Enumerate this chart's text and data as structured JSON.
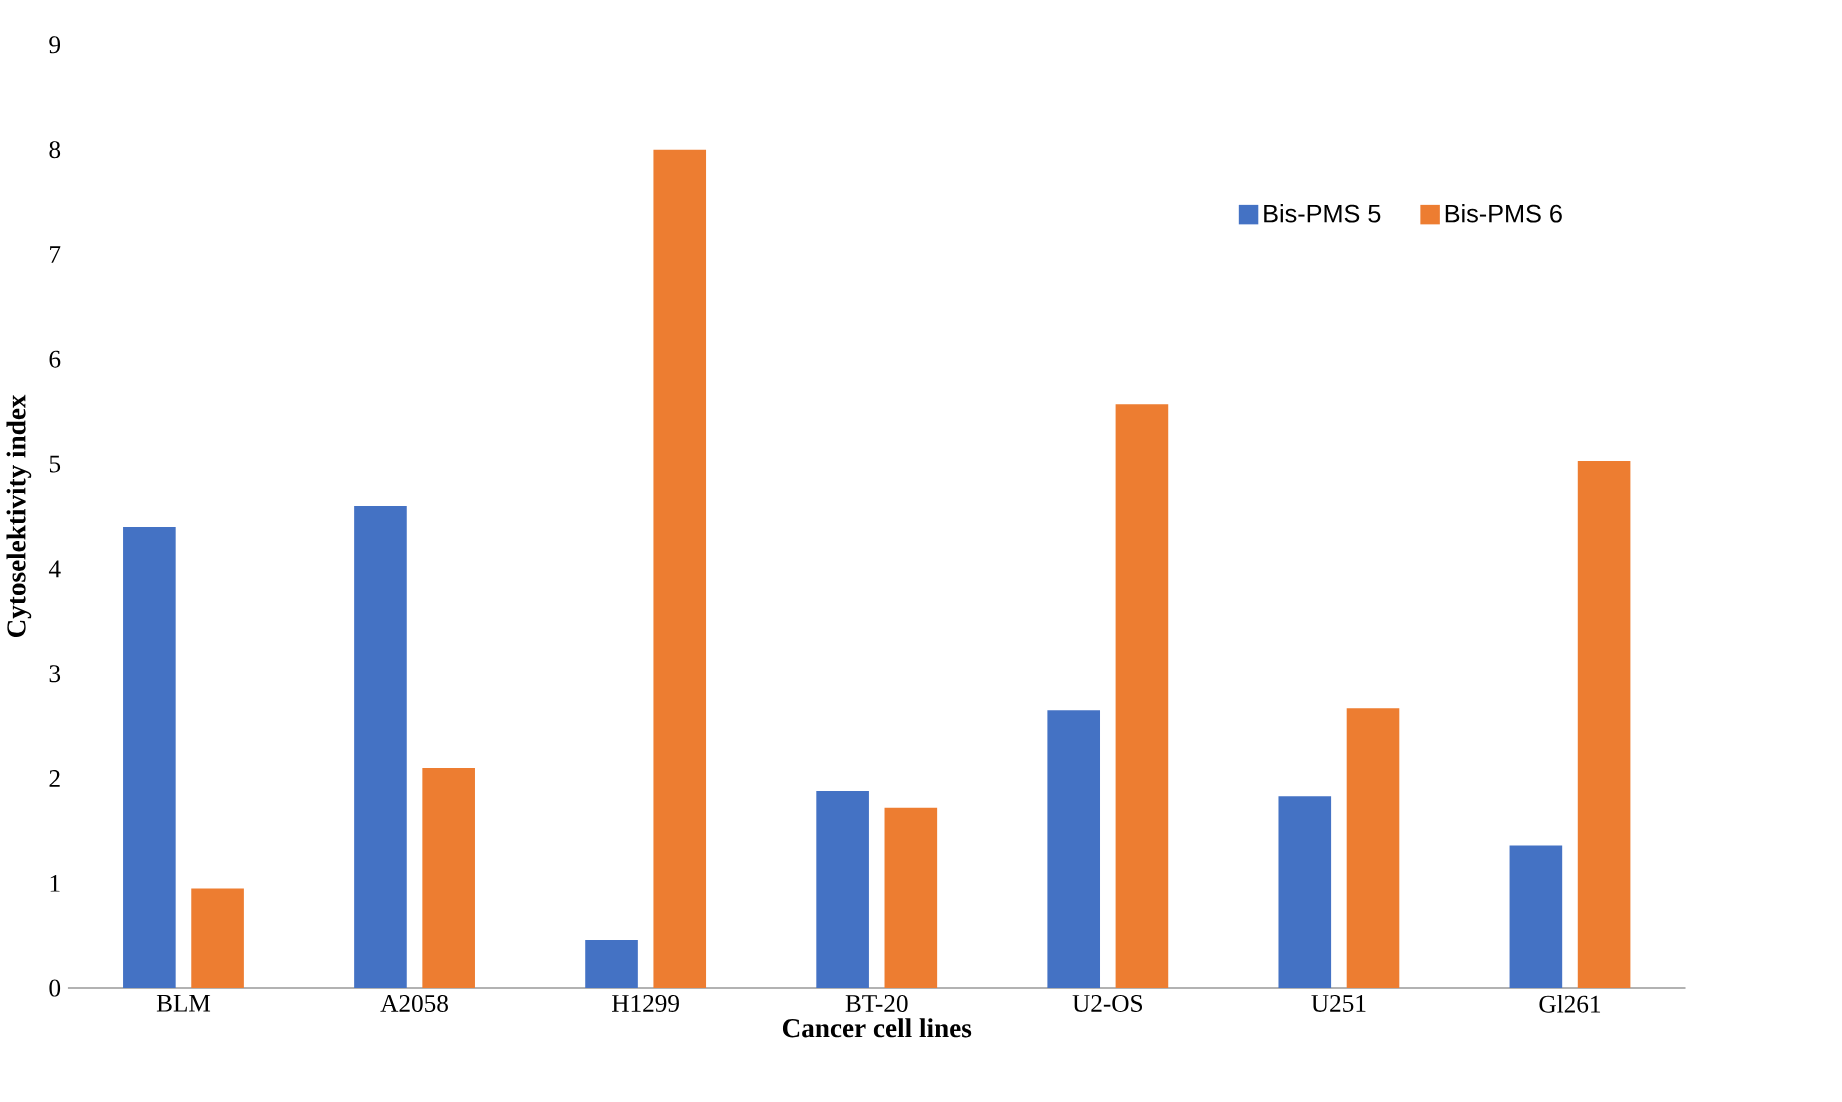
{
  "chart_data": {
    "type": "bar",
    "xlabel": "Cancer cell lines",
    "ylabel": "Cytoselektivity index",
    "categories": [
      "BLM",
      "A2058",
      "H1299",
      "BT-20",
      "U2-OS",
      "U251",
      "Gl261"
    ],
    "series": [
      {
        "name": "Bis-PMS 5",
        "color": "#4472c4",
        "values": [
          4.4,
          4.6,
          0.46,
          1.88,
          2.65,
          1.83,
          1.36
        ]
      },
      {
        "name": "Bis-PMS 6",
        "color": "#ed7d31",
        "values": [
          0.95,
          2.1,
          8.0,
          1.72,
          5.57,
          2.67,
          5.03
        ]
      }
    ],
    "ylim": [
      0,
      9
    ],
    "yticks": [
      0,
      1,
      2,
      3,
      4,
      5,
      6,
      7,
      8,
      9
    ],
    "grid": false,
    "legend": "top right"
  }
}
